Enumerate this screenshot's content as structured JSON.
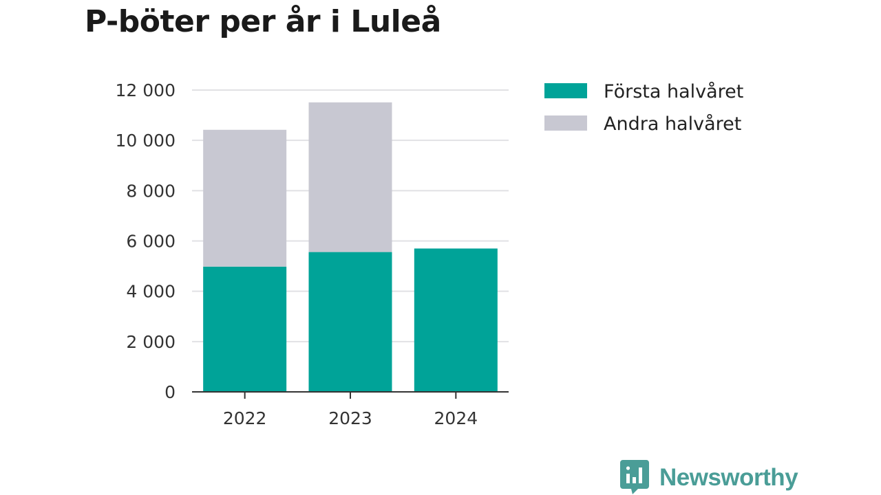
{
  "chart_data": {
    "type": "bar",
    "stacked": true,
    "title": "P-böter per år i Luleå",
    "categories": [
      "2022",
      "2023",
      "2024"
    ],
    "series": [
      {
        "name": "Första halvåret",
        "values": [
          4980,
          5560,
          5700
        ],
        "color": "#00a398"
      },
      {
        "name": "Andra halvåret",
        "values": [
          5440,
          5950,
          0
        ],
        "color": "#c8c8d2"
      }
    ],
    "ylim": [
      0,
      12000
    ],
    "yticks": [
      0,
      2000,
      4000,
      6000,
      8000,
      10000,
      12000
    ],
    "ytick_labels": [
      "0",
      "2 000",
      "4 000",
      "6 000",
      "8 000",
      "10 000",
      "12 000"
    ],
    "grid": true,
    "legend_position": "top-right",
    "xlabel": "",
    "ylabel": ""
  },
  "brand": {
    "name": "Newsworthy",
    "icon": "speech-bubble-bar-chart-icon",
    "color": "#4a9d97"
  }
}
